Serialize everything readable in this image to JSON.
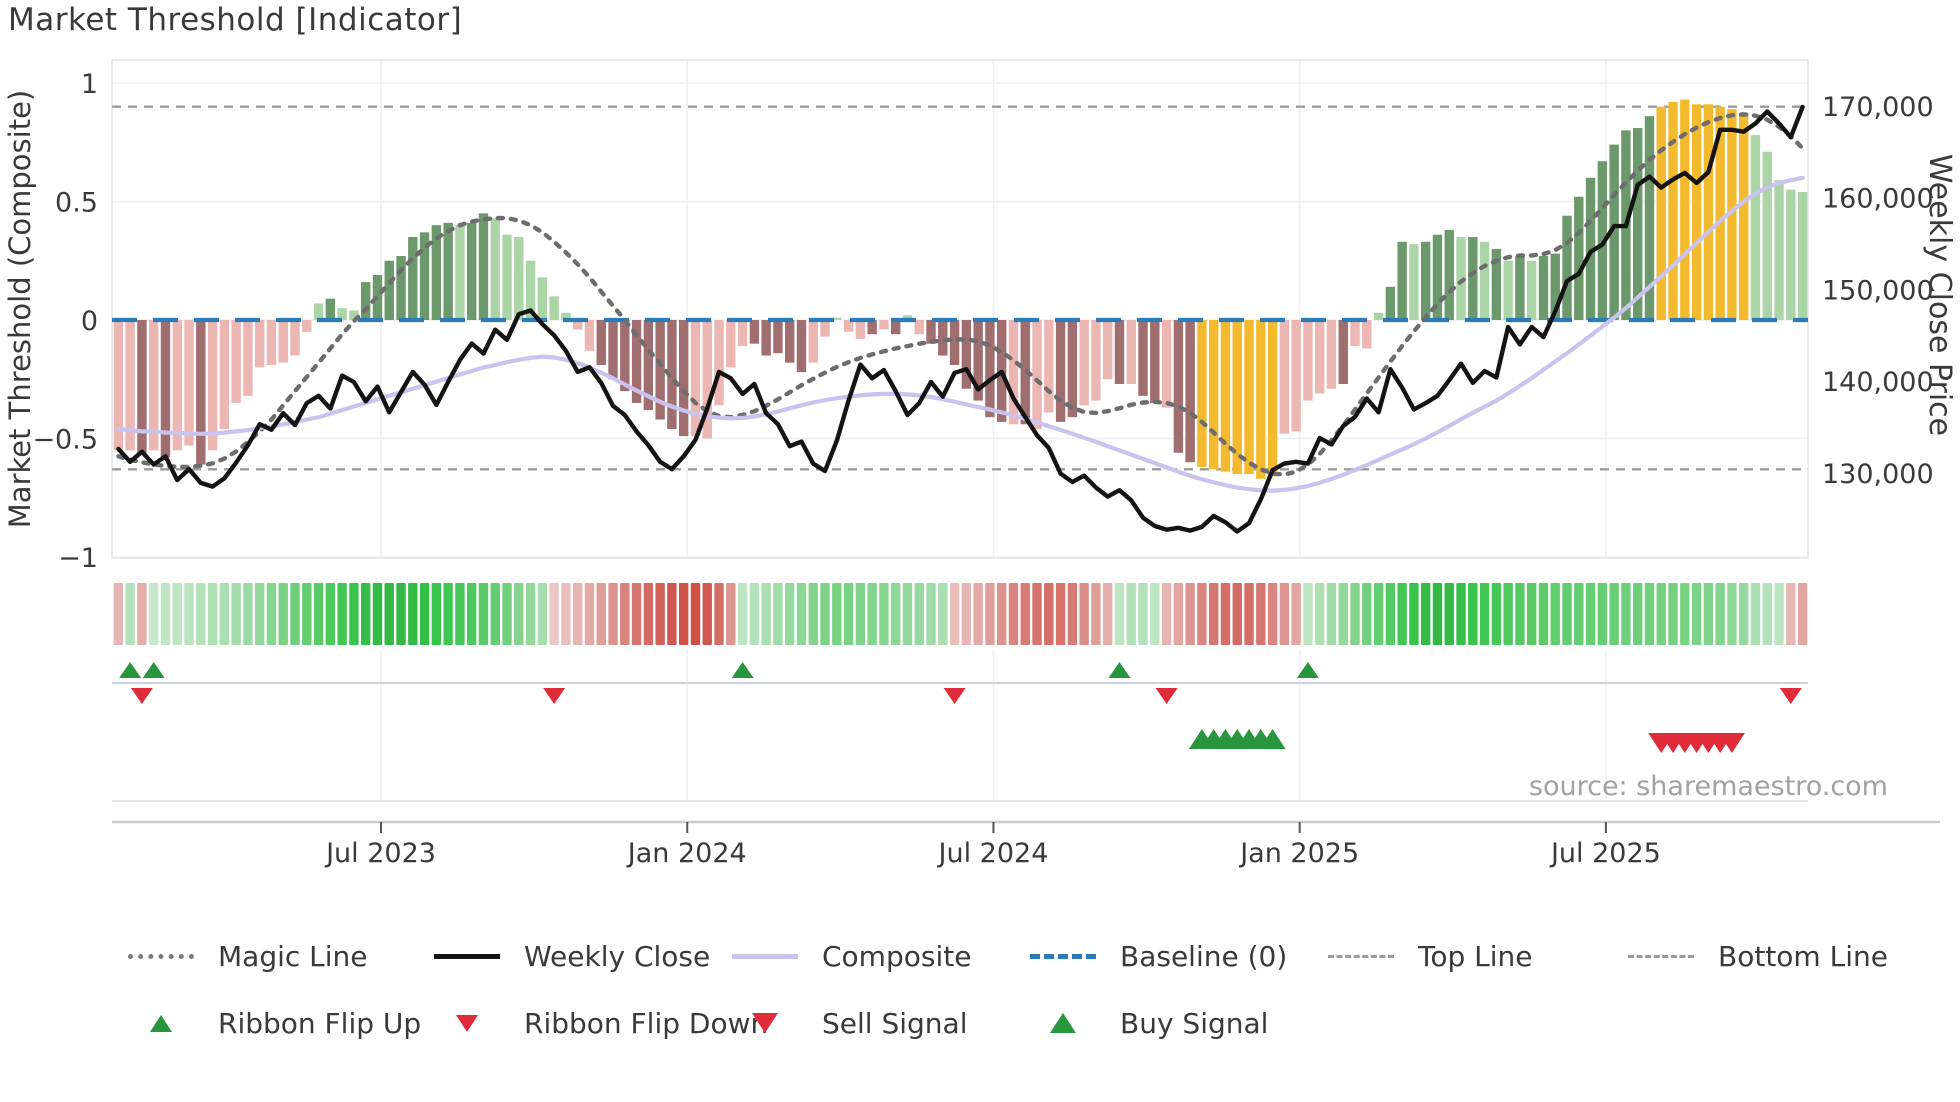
{
  "title": "Market Threshold [Indicator]",
  "source_note": "source: sharemaestro.com",
  "axes": {
    "left_label": "Market Threshold (Composite)",
    "right_label": "Weekly Close Price",
    "left_ticks": [
      "1",
      "0.5",
      "0",
      "−0.5",
      "−1"
    ],
    "left_tick_values": [
      1,
      0.5,
      0,
      -0.5,
      -1
    ],
    "right_ticks": [
      "170,000",
      "160,000",
      "150,000",
      "140,000",
      "130,000"
    ],
    "right_tick_values": [
      170000,
      160000,
      150000,
      140000,
      130000
    ],
    "x_ticks": [
      "Jul 2023",
      "Jan 2024",
      "Jul 2024",
      "Jan 2025",
      "Jul 2025"
    ],
    "x_tick_week_index": [
      22.3,
      48.3,
      74.3,
      100.3,
      126.3
    ]
  },
  "colors": {
    "bar_dark_red": "#a06e6e",
    "bar_light_red": "#ecb7b2",
    "bar_dark_green": "#6b996b",
    "bar_light_green": "#abd5a6",
    "bar_gold": "#f4ba2e",
    "weekly_close_line": "#141414",
    "composite_line": "#c9c3ef",
    "magic_line": "#6d6d6d",
    "baseline": "#2b7bb9",
    "top_bottom_line": "#9b9b9b",
    "flip_up_green": "#27963c",
    "flip_down_red": "#df2b3a",
    "grid": "#edf0f5",
    "frame": "#e2e5ea",
    "text": "#3a3a3a",
    "source_text": "#a2a2a2"
  },
  "legend": {
    "row1": [
      {
        "label": "Magic Line",
        "swatch": "magic"
      },
      {
        "label": "Weekly Close",
        "swatch": "close"
      },
      {
        "label": "Composite",
        "swatch": "composite"
      },
      {
        "label": "Baseline (0)",
        "swatch": "baseline"
      },
      {
        "label": "Top Line",
        "swatch": "topline"
      },
      {
        "label": "Bottom Line",
        "swatch": "bottomline"
      }
    ],
    "row2": [
      {
        "label": "Ribbon Flip Up",
        "swatch": "tri-up-small"
      },
      {
        "label": "Ribbon Flip Down",
        "swatch": "tri-down-small"
      },
      {
        "label": "Sell Signal",
        "swatch": "tri-down-big"
      },
      {
        "label": "Buy Signal",
        "swatch": "tri-up-big"
      }
    ]
  },
  "chart_data": {
    "type": "bar",
    "title": "Market Threshold [Indicator]",
    "xlabel": "",
    "ylabel": "Market Threshold (Composite)",
    "ylabel_right": "Weekly Close Price",
    "ylim": [
      -1.05,
      1.05
    ],
    "right_axis_ticks": [
      170000,
      160000,
      150000,
      140000,
      130000
    ],
    "x_tick_labels": [
      "Jul 2023",
      "Jan 2024",
      "Jul 2024",
      "Jan 2025",
      "Jul 2025"
    ],
    "x_tick_week_index": [
      22.3,
      48.3,
      74.3,
      100.3,
      126.3
    ],
    "weeks": 144,
    "baseline": 0,
    "top_line": 0.9,
    "bottom_line": -0.63,
    "threshold_bars": {
      "values": [
        -0.55,
        -0.55,
        -0.56,
        -0.55,
        -0.58,
        -0.55,
        -0.53,
        -0.61,
        -0.55,
        -0.46,
        -0.35,
        -0.32,
        -0.2,
        -0.19,
        -0.18,
        -0.15,
        -0.05,
        0.07,
        0.09,
        0.05,
        0.04,
        0.16,
        0.19,
        0.25,
        0.27,
        0.35,
        0.37,
        0.4,
        0.41,
        0.4,
        0.41,
        0.45,
        0.43,
        0.36,
        0.35,
        0.25,
        0.18,
        0.1,
        0.03,
        -0.04,
        -0.13,
        -0.19,
        -0.25,
        -0.3,
        -0.35,
        -0.38,
        -0.42,
        -0.46,
        -0.49,
        -0.49,
        -0.5,
        -0.36,
        -0.2,
        -0.11,
        -0.1,
        -0.15,
        -0.14,
        -0.18,
        -0.22,
        -0.18,
        -0.07,
        0.01,
        -0.05,
        -0.08,
        -0.06,
        -0.04,
        -0.06,
        0.02,
        -0.06,
        -0.1,
        -0.15,
        -0.19,
        -0.29,
        -0.34,
        -0.41,
        -0.43,
        -0.44,
        -0.44,
        -0.46,
        -0.39,
        -0.43,
        -0.41,
        -0.36,
        -0.34,
        -0.25,
        -0.27,
        -0.27,
        -0.32,
        -0.35,
        -0.37,
        -0.56,
        -0.6,
        -0.62,
        -0.63,
        -0.64,
        -0.65,
        -0.65,
        -0.67,
        -0.66,
        -0.48,
        -0.47,
        -0.34,
        -0.31,
        -0.29,
        -0.27,
        -0.11,
        -0.12,
        0.03,
        0.14,
        0.33,
        0.32,
        0.33,
        0.36,
        0.38,
        0.35,
        0.35,
        0.33,
        0.3,
        0.25,
        0.27,
        0.25,
        0.27,
        0.28,
        0.44,
        0.52,
        0.6,
        0.67,
        0.74,
        0.8,
        0.81,
        0.86,
        0.9,
        0.92,
        0.93,
        0.91,
        0.91,
        0.9,
        0.89,
        0.87,
        0.78,
        0.71,
        0.59,
        0.55,
        0.54
      ],
      "colors": [
        "lr",
        "lr",
        "dr",
        "lr",
        "dr",
        "lr",
        "lr",
        "dr",
        "lr",
        "lr",
        "lr",
        "lr",
        "lr",
        "lr",
        "lr",
        "lr",
        "lr",
        "lg",
        "dg",
        "lg",
        "lg",
        "dg",
        "dg",
        "dg",
        "dg",
        "dg",
        "dg",
        "dg",
        "dg",
        "lg",
        "dg",
        "dg",
        "lg",
        "lg",
        "lg",
        "lg",
        "lg",
        "lg",
        "lg",
        "lr",
        "lr",
        "dr",
        "dr",
        "dr",
        "dr",
        "dr",
        "dr",
        "dr",
        "dr",
        "lr",
        "lr",
        "lr",
        "lr",
        "lr",
        "dr",
        "dr",
        "dr",
        "dr",
        "dr",
        "lr",
        "lr",
        "lg",
        "lr",
        "lr",
        "dr",
        "lr",
        "dr",
        "lg",
        "lr",
        "dr",
        "dr",
        "dr",
        "dr",
        "dr",
        "dr",
        "dr",
        "lr",
        "dr",
        "lr",
        "lr",
        "dr",
        "dr",
        "lr",
        "lr",
        "lr",
        "dr",
        "lr",
        "dr",
        "dr",
        "lr",
        "dr",
        "dr",
        "gold",
        "gold",
        "gold",
        "gold",
        "gold",
        "gold",
        "gold",
        "lr",
        "lr",
        "lr",
        "lr",
        "lr",
        "dr",
        "lr",
        "lr",
        "lg",
        "dg",
        "dg",
        "lg",
        "dg",
        "dg",
        "dg",
        "lg",
        "dg",
        "lg",
        "dg",
        "lg",
        "dg",
        "lg",
        "dg",
        "dg",
        "dg",
        "dg",
        "dg",
        "dg",
        "dg",
        "dg",
        "dg",
        "dg",
        "gold",
        "gold",
        "gold",
        "gold",
        "gold",
        "gold",
        "gold",
        "gold",
        "lg",
        "lg",
        "lg",
        "lg",
        "lg"
      ]
    },
    "weekly_close": [
      132600,
      131200,
      132300,
      130900,
      131800,
      129200,
      130400,
      128900,
      128500,
      129400,
      131100,
      133000,
      135300,
      134700,
      136500,
      135200,
      137600,
      138400,
      137000,
      140600,
      139900,
      137800,
      139400,
      136600,
      138800,
      141000,
      139600,
      137400,
      139900,
      142300,
      144100,
      143000,
      145600,
      144500,
      147300,
      147700,
      146200,
      145000,
      143300,
      141000,
      141500,
      139800,
      137300,
      136300,
      134500,
      133000,
      131200,
      130400,
      131800,
      133600,
      137000,
      141000,
      140300,
      138600,
      139700,
      136500,
      135300,
      132900,
      133400,
      131000,
      130200,
      133500,
      137900,
      141800,
      140300,
      141200,
      138900,
      136300,
      137600,
      139900,
      138300,
      140900,
      141300,
      139100,
      140100,
      141000,
      138100,
      136100,
      134100,
      132700,
      129900,
      129000,
      129700,
      128400,
      127400,
      128100,
      127000,
      125100,
      124200,
      123800,
      124000,
      123700,
      124100,
      125300,
      124600,
      123600,
      124500,
      127100,
      130300,
      131000,
      131200,
      131000,
      133800,
      133100,
      135100,
      136100,
      138100,
      136600,
      141300,
      139300,
      136900,
      137600,
      138400,
      140100,
      141900,
      139800,
      141100,
      140400,
      145900,
      144000,
      145900,
      144800,
      147600,
      150900,
      151700,
      154100,
      154900,
      156900,
      156900,
      161400,
      162300,
      161100,
      162000,
      162700,
      161600,
      162800,
      167400,
      167400,
      167200,
      168100,
      169400,
      168100,
      166600,
      169900
    ],
    "composite": [
      -0.46,
      -0.465,
      -0.47,
      -0.47,
      -0.475,
      -0.475,
      -0.48,
      -0.48,
      -0.48,
      -0.475,
      -0.47,
      -0.465,
      -0.455,
      -0.45,
      -0.44,
      -0.43,
      -0.42,
      -0.41,
      -0.395,
      -0.38,
      -0.365,
      -0.35,
      -0.335,
      -0.32,
      -0.305,
      -0.29,
      -0.275,
      -0.26,
      -0.245,
      -0.23,
      -0.215,
      -0.2,
      -0.19,
      -0.178,
      -0.168,
      -0.16,
      -0.155,
      -0.158,
      -0.168,
      -0.182,
      -0.2,
      -0.222,
      -0.246,
      -0.272,
      -0.298,
      -0.322,
      -0.345,
      -0.365,
      -0.382,
      -0.396,
      -0.406,
      -0.412,
      -0.415,
      -0.413,
      -0.407,
      -0.398,
      -0.386,
      -0.373,
      -0.36,
      -0.348,
      -0.338,
      -0.33,
      -0.323,
      -0.318,
      -0.314,
      -0.312,
      -0.312,
      -0.314,
      -0.318,
      -0.325,
      -0.334,
      -0.345,
      -0.356,
      -0.367,
      -0.378,
      -0.39,
      -0.403,
      -0.417,
      -0.432,
      -0.448,
      -0.464,
      -0.48,
      -0.497,
      -0.514,
      -0.532,
      -0.55,
      -0.568,
      -0.586,
      -0.604,
      -0.622,
      -0.64,
      -0.657,
      -0.672,
      -0.685,
      -0.697,
      -0.707,
      -0.714,
      -0.719,
      -0.72,
      -0.717,
      -0.71,
      -0.7,
      -0.687,
      -0.671,
      -0.653,
      -0.633,
      -0.612,
      -0.59,
      -0.568,
      -0.546,
      -0.524,
      -0.5,
      -0.474,
      -0.447,
      -0.419,
      -0.392,
      -0.366,
      -0.34,
      -0.31,
      -0.278,
      -0.245,
      -0.21,
      -0.175,
      -0.14,
      -0.104,
      -0.066,
      -0.028,
      0.01,
      0.05,
      0.095,
      0.14,
      0.185,
      0.23,
      0.278,
      0.325,
      0.372,
      0.418,
      0.46,
      0.5,
      0.533,
      0.56,
      0.578,
      0.59,
      0.6
    ],
    "magic_line": [
      -0.575,
      -0.59,
      -0.6,
      -0.61,
      -0.615,
      -0.62,
      -0.62,
      -0.615,
      -0.605,
      -0.585,
      -0.555,
      -0.515,
      -0.47,
      -0.42,
      -0.36,
      -0.3,
      -0.24,
      -0.18,
      -0.12,
      -0.06,
      -0.005,
      0.045,
      0.1,
      0.155,
      0.21,
      0.26,
      0.305,
      0.345,
      0.375,
      0.4,
      0.415,
      0.425,
      0.43,
      0.43,
      0.42,
      0.4,
      0.37,
      0.33,
      0.285,
      0.235,
      0.18,
      0.12,
      0.06,
      0.0,
      -0.065,
      -0.125,
      -0.185,
      -0.245,
      -0.3,
      -0.35,
      -0.385,
      -0.405,
      -0.41,
      -0.4,
      -0.385,
      -0.362,
      -0.335,
      -0.305,
      -0.275,
      -0.248,
      -0.222,
      -0.198,
      -0.178,
      -0.16,
      -0.145,
      -0.132,
      -0.12,
      -0.11,
      -0.1,
      -0.092,
      -0.086,
      -0.082,
      -0.082,
      -0.09,
      -0.108,
      -0.135,
      -0.17,
      -0.21,
      -0.255,
      -0.3,
      -0.34,
      -0.37,
      -0.388,
      -0.392,
      -0.385,
      -0.372,
      -0.358,
      -0.348,
      -0.345,
      -0.35,
      -0.365,
      -0.392,
      -0.43,
      -0.475,
      -0.522,
      -0.565,
      -0.602,
      -0.63,
      -0.648,
      -0.652,
      -0.64,
      -0.61,
      -0.565,
      -0.508,
      -0.445,
      -0.378,
      -0.31,
      -0.242,
      -0.175,
      -0.11,
      -0.048,
      0.012,
      0.068,
      0.118,
      0.162,
      0.198,
      0.228,
      0.25,
      0.265,
      0.272,
      0.272,
      0.278,
      0.295,
      0.325,
      0.368,
      0.418,
      0.472,
      0.527,
      0.58,
      0.63,
      0.675,
      0.716,
      0.752,
      0.784,
      0.812,
      0.835,
      0.852,
      0.864,
      0.868,
      0.862,
      0.845,
      0.815,
      0.775,
      0.725
    ],
    "ribbon": [
      -0.3,
      0.25,
      -0.35,
      0.15,
      0.18,
      0.2,
      0.22,
      0.25,
      0.28,
      0.3,
      0.33,
      0.38,
      0.42,
      0.48,
      0.55,
      0.6,
      0.65,
      0.7,
      0.75,
      0.8,
      0.85,
      0.88,
      0.9,
      0.92,
      0.92,
      0.9,
      0.88,
      0.85,
      0.82,
      0.78,
      0.74,
      0.7,
      0.65,
      0.58,
      0.5,
      0.42,
      0.32,
      -0.2,
      -0.25,
      -0.3,
      -0.38,
      -0.45,
      -0.52,
      -0.6,
      -0.68,
      -0.75,
      -0.8,
      -0.85,
      -0.88,
      -0.9,
      -0.85,
      -0.72,
      -0.5,
      0.2,
      0.25,
      0.3,
      0.35,
      0.4,
      0.45,
      0.5,
      0.52,
      0.55,
      0.55,
      0.52,
      0.5,
      0.48,
      0.45,
      0.42,
      0.4,
      0.35,
      0.3,
      -0.25,
      -0.3,
      -0.38,
      -0.45,
      -0.52,
      -0.6,
      -0.65,
      -0.7,
      -0.72,
      -0.7,
      -0.65,
      -0.55,
      -0.45,
      -0.35,
      0.2,
      0.25,
      0.25,
      0.2,
      -0.3,
      -0.4,
      -0.5,
      -0.6,
      -0.68,
      -0.72,
      -0.75,
      -0.72,
      -0.68,
      -0.6,
      -0.5,
      -0.4,
      0.2,
      0.28,
      0.35,
      0.42,
      0.5,
      0.58,
      0.65,
      0.72,
      0.8,
      0.85,
      0.9,
      0.92,
      0.9,
      0.88,
      0.85,
      0.8,
      0.78,
      0.75,
      0.72,
      0.7,
      0.68,
      0.66,
      0.65,
      0.65,
      0.64,
      0.63,
      0.62,
      0.6,
      0.6,
      0.58,
      0.57,
      0.56,
      0.55,
      0.54,
      0.52,
      0.5,
      0.45,
      0.4,
      0.3,
      0.25,
      0.2,
      -0.3,
      -0.4
    ],
    "signals": {
      "ribbon_flip_up_weeks": [
        1,
        3,
        53,
        85,
        101
      ],
      "ribbon_flip_down_weeks": [
        2,
        37,
        71,
        89,
        142
      ],
      "buy_signal_weeks": [
        92,
        93,
        94,
        95,
        96,
        97,
        98
      ],
      "sell_signal_weeks": [
        131,
        132,
        133,
        134,
        135,
        136,
        137
      ]
    }
  }
}
